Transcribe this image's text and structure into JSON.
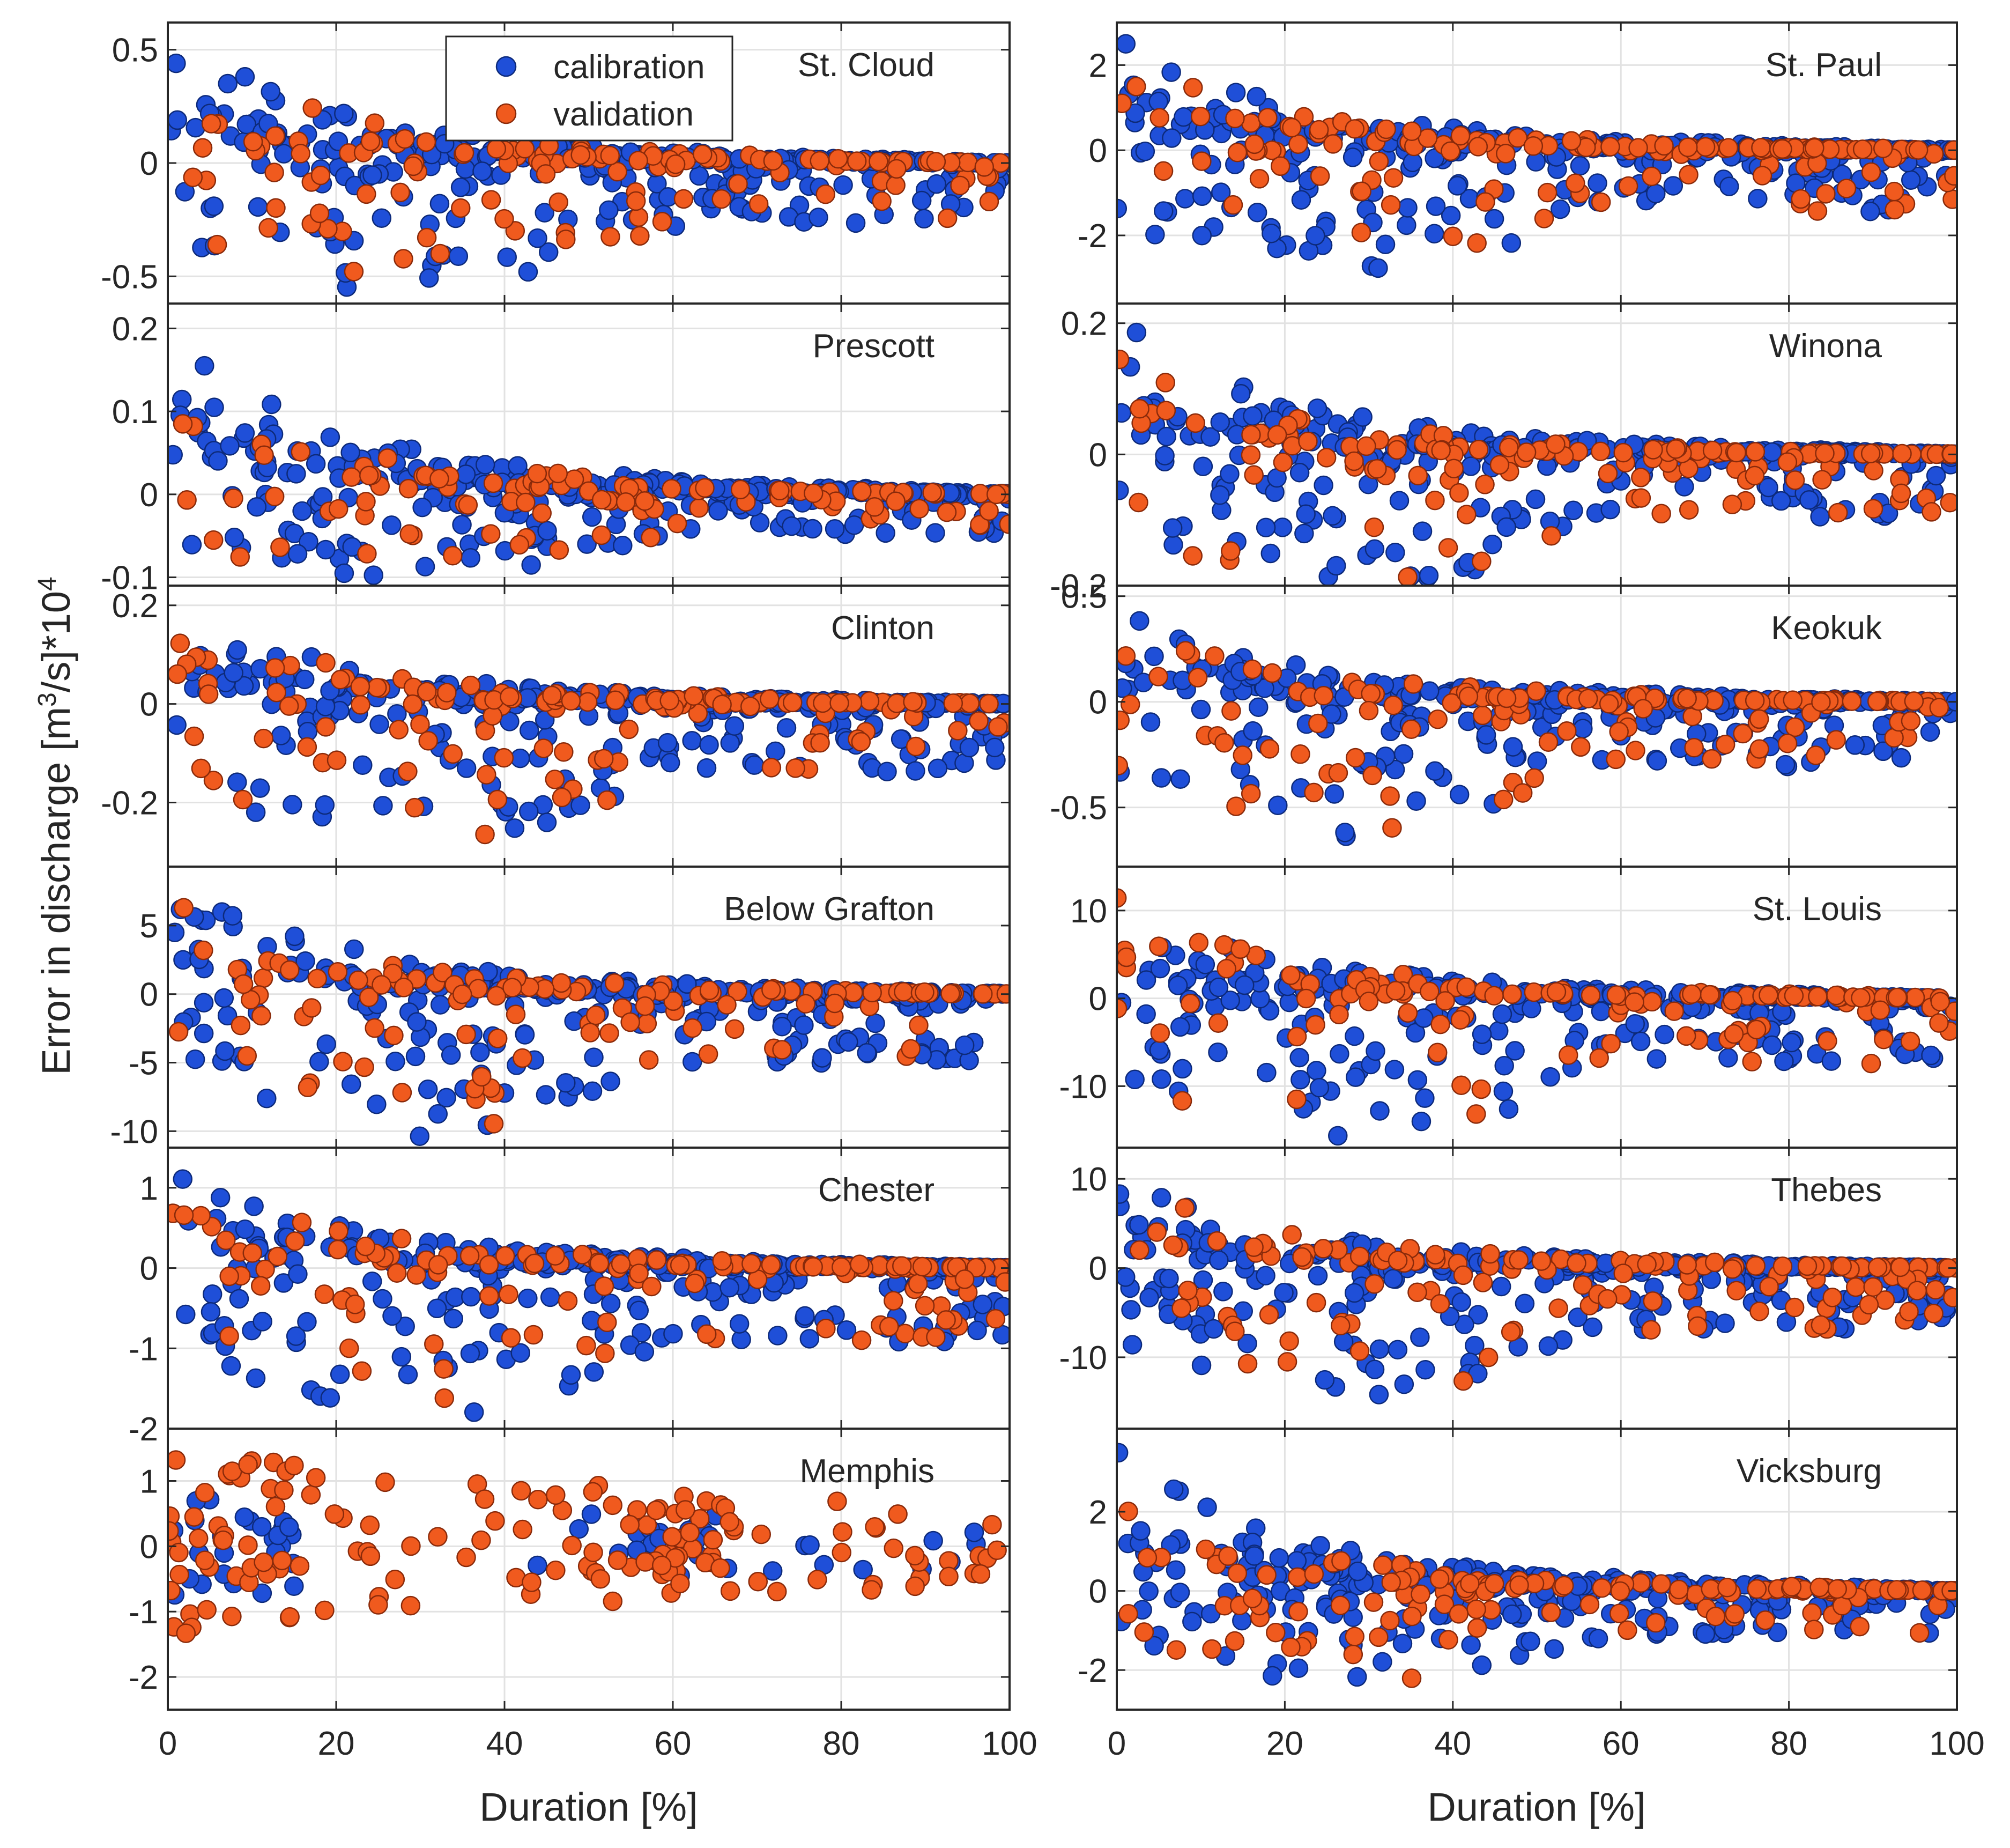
{
  "chart_data": {
    "type": "scatter",
    "figure_ylabel": "Error in discharge [m³/s]*10⁴",
    "figure_ylabel_parts": {
      "base": "Error in discharge [m",
      "sup1": "3",
      "mid": "/s]*10",
      "sup2": "4"
    },
    "xlabel": "Duration [%]",
    "xlim": [
      0,
      100
    ],
    "xticks": [
      0,
      20,
      40,
      60,
      80,
      100
    ],
    "xtick_labels": [
      "0",
      "20",
      "40",
      "60",
      "80",
      "100"
    ],
    "grid": true,
    "legend": {
      "location": "top-center of first panel",
      "entries": [
        {
          "name": "calibration",
          "color": "#1f4fd8",
          "edge": "#0d2a7a"
        },
        {
          "name": "validation",
          "color": "#f05a1e",
          "edge": "#8a2a0a"
        }
      ]
    },
    "series_names": [
      "calibration",
      "validation"
    ],
    "panels": [
      {
        "title": "St. Cloud",
        "column": "left",
        "ylim": [
          -0.62,
          0.62
        ],
        "yticks": [
          -0.5,
          0,
          0.5
        ],
        "ytick_labels": [
          "-0.5",
          "0",
          "0.5"
        ],
        "calib_amp": 0.6,
        "valid_amp": 0.55,
        "calib_max": 0.6,
        "valid_max": 0.55,
        "floor": -0.58,
        "seed": 11,
        "n_cal": 300,
        "n_val": 130
      },
      {
        "title": "Prescott",
        "column": "left",
        "ylim": [
          -0.11,
          0.23
        ],
        "yticks": [
          -0.1,
          0,
          0.1,
          0.2
        ],
        "ytick_labels": [
          "-0.1",
          "0",
          "0.1",
          "0.2"
        ],
        "calib_amp": 0.21,
        "valid_amp": 0.18,
        "calib_max": 0.21,
        "valid_max": 0.18,
        "floor": -0.1,
        "seed": 23,
        "n_cal": 320,
        "n_val": 110
      },
      {
        "title": "Clinton",
        "column": "left",
        "ylim": [
          -0.33,
          0.24
        ],
        "yticks": [
          -0.2,
          0,
          0.2
        ],
        "ytick_labels": [
          "-0.2",
          "0",
          "0.2"
        ],
        "calib_amp": 0.21,
        "valid_amp": 0.2,
        "calib_max": 0.23,
        "valid_max": 0.2,
        "floor": -0.29,
        "seed": 37,
        "n_cal": 320,
        "n_val": 140
      },
      {
        "title": "Below Grafton",
        "column": "left",
        "ylim": [
          -11.2,
          9.3
        ],
        "yticks": [
          -10,
          -5,
          0,
          5
        ],
        "ytick_labels": [
          "-10",
          "-5",
          "0",
          "5"
        ],
        "calib_amp": 9.0,
        "valid_amp": 7.0,
        "calib_max": 9.0,
        "valid_max": 7.0,
        "floor": -10.5,
        "seed": 41,
        "n_cal": 320,
        "n_val": 120
      },
      {
        "title": "Chester",
        "column": "left",
        "ylim": [
          -2.0,
          1.5
        ],
        "yticks": [
          -2,
          -1,
          0,
          1
        ],
        "ytick_labels": [
          "-2",
          "-1",
          "0",
          "1"
        ],
        "calib_amp": 1.45,
        "valid_amp": 1.3,
        "calib_max": 1.45,
        "valid_max": 1.3,
        "floor": -1.95,
        "seed": 53,
        "n_cal": 320,
        "n_val": 140
      },
      {
        "title": "Memphis",
        "column": "left",
        "ylim": [
          -2.5,
          1.8
        ],
        "yticks": [
          -2,
          -1,
          0,
          1
        ],
        "ytick_labels": [
          "-2",
          "-1",
          "0",
          "1"
        ],
        "calib_amp": 1.0,
        "valid_amp": 1.5,
        "calib_max": 1.1,
        "valid_max": 1.55,
        "floor": -1.95,
        "seed": 67,
        "n_cal": 60,
        "n_val": 150,
        "memphis": true
      },
      {
        "title": "St. Paul",
        "column": "right",
        "ylim": [
          -3.6,
          3.0
        ],
        "yticks": [
          -2,
          0,
          2
        ],
        "ytick_labels": [
          "-2",
          "0",
          "2"
        ],
        "calib_amp": 2.9,
        "valid_amp": 2.4,
        "calib_max": 2.9,
        "valid_max": 2.4,
        "floor": -3.0,
        "seed": 71,
        "n_cal": 320,
        "n_val": 150
      },
      {
        "title": "Winona",
        "column": "right",
        "ylim": [
          -0.2,
          0.23
        ],
        "yticks": [
          -0.2,
          0,
          0.2
        ],
        "ytick_labels": [
          "-0.2",
          "0",
          "0.2"
        ],
        "calib_amp": 0.21,
        "valid_amp": 0.16,
        "calib_max": 0.21,
        "valid_max": 0.17,
        "floor": -0.2,
        "seed": 83,
        "n_cal": 330,
        "n_val": 140
      },
      {
        "title": "Keokuk",
        "column": "right",
        "ylim": [
          -0.78,
          0.55
        ],
        "yticks": [
          -0.5,
          0,
          0.5
        ],
        "ytick_labels": [
          "-0.5",
          "0",
          "0.5"
        ],
        "calib_amp": 0.46,
        "valid_amp": 0.43,
        "calib_max": 0.46,
        "valid_max": 0.43,
        "floor": -0.64,
        "seed": 97,
        "n_cal": 320,
        "n_val": 140
      },
      {
        "title": "St. Louis",
        "column": "right",
        "ylim": [
          -17.0,
          15.0
        ],
        "yticks": [
          -10,
          0,
          10
        ],
        "ytick_labels": [
          "-10",
          "0",
          "10"
        ],
        "calib_amp": 12.0,
        "valid_amp": 13.5,
        "calib_max": 12.0,
        "valid_max": 13.5,
        "floor": -16.0,
        "seed": 101,
        "n_cal": 320,
        "n_val": 130
      },
      {
        "title": "Thebes",
        "column": "right",
        "ylim": [
          -18.0,
          13.5
        ],
        "yticks": [
          -10,
          0,
          10
        ],
        "ytick_labels": [
          "-10",
          "0",
          "10"
        ],
        "calib_amp": 10.5,
        "valid_amp": 11.0,
        "calib_max": 10.5,
        "valid_max": 11.0,
        "floor": -14.5,
        "seed": 113,
        "n_cal": 320,
        "n_val": 140
      },
      {
        "title": "Vicksburg",
        "column": "right",
        "ylim": [
          -3.0,
          4.1
        ],
        "yticks": [
          -2,
          0,
          2
        ],
        "ytick_labels": [
          "-2",
          "0",
          "2"
        ],
        "calib_amp": 3.7,
        "valid_amp": 2.9,
        "calib_max": 3.7,
        "valid_max": 2.9,
        "floor": -2.3,
        "seed": 127,
        "n_cal": 320,
        "n_val": 140
      }
    ]
  }
}
